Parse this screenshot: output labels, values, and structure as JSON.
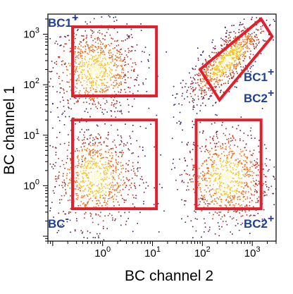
{
  "chart_data": {
    "type": "scatter",
    "title": "",
    "xlabel": "BC channel 2",
    "ylabel": "BC channel 1",
    "xscale": "log",
    "yscale": "log",
    "xlim": [
      0.08,
      3000
    ],
    "ylim": [
      0.08,
      2500
    ],
    "x_ticks": [
      {
        "value": 1,
        "base": "10",
        "exp": "0"
      },
      {
        "value": 10,
        "base": "10",
        "exp": "1"
      },
      {
        "value": 100,
        "base": "10",
        "exp": "2"
      },
      {
        "value": 1000,
        "base": "10",
        "exp": "3"
      }
    ],
    "y_ticks": [
      {
        "value": 1,
        "base": "10",
        "exp": "0"
      },
      {
        "value": 10,
        "base": "10",
        "exp": "1"
      },
      {
        "value": 100,
        "base": "10",
        "exp": "2"
      },
      {
        "value": 1000,
        "base": "10",
        "exp": "3"
      }
    ],
    "grid": false,
    "colormap": [
      "#2a1f6b",
      "#6a1d4a",
      "#b5301f",
      "#e8701a",
      "#f7c21d",
      "#fff6a0"
    ],
    "gate_color": "#e2202c",
    "label_color": "#1f3f99",
    "populations": [
      {
        "name": "BC1+",
        "label_main": "BC1",
        "label_sup": "+",
        "center": [
          0.7,
          200
        ],
        "spread": [
          0.45,
          0.45
        ]
      },
      {
        "name": "BC-",
        "label_main": "BC",
        "label_sup": "-",
        "center": [
          0.7,
          1.5
        ],
        "spread": [
          0.45,
          0.5
        ]
      },
      {
        "name": "BC2+",
        "label_main": "BC2",
        "label_sup": "+",
        "center": [
          300,
          1.5
        ],
        "spread": [
          0.45,
          0.5
        ]
      },
      {
        "name": "BC1+BC2+",
        "label_main": "BC1",
        "label_sup": "+",
        "label_main_2": "BC2",
        "label_sup_2": "+",
        "center": [
          300,
          300
        ],
        "spread": [
          0.35,
          0.35
        ],
        "diagonal": true
      }
    ],
    "gates": [
      {
        "name": "BC1+",
        "x": [
          0.25,
          12
        ],
        "y": [
          60,
          1400
        ]
      },
      {
        "name": "BC-",
        "x": [
          0.25,
          12
        ],
        "y": [
          0.35,
          20
        ]
      },
      {
        "name": "BC2+",
        "x": [
          75,
          1500
        ],
        "y": [
          0.35,
          20
        ]
      }
    ],
    "diagonal_gate": {
      "name": "BC1+BC2+",
      "corners": [
        [
          1500,
          2000
        ],
        [
          2500,
          900
        ],
        [
          220,
          50
        ],
        [
          90,
          200
        ]
      ]
    },
    "labels": {
      "top_left": {
        "main": "BC1",
        "sup": "+"
      },
      "bottom_left": {
        "main": "BC",
        "sup": "-"
      },
      "bottom_right": {
        "main": "BC2",
        "sup": "+"
      },
      "diag_a": {
        "main": "BC1",
        "sup": "+"
      },
      "diag_b": {
        "main": "BC2",
        "sup": "+"
      }
    }
  }
}
